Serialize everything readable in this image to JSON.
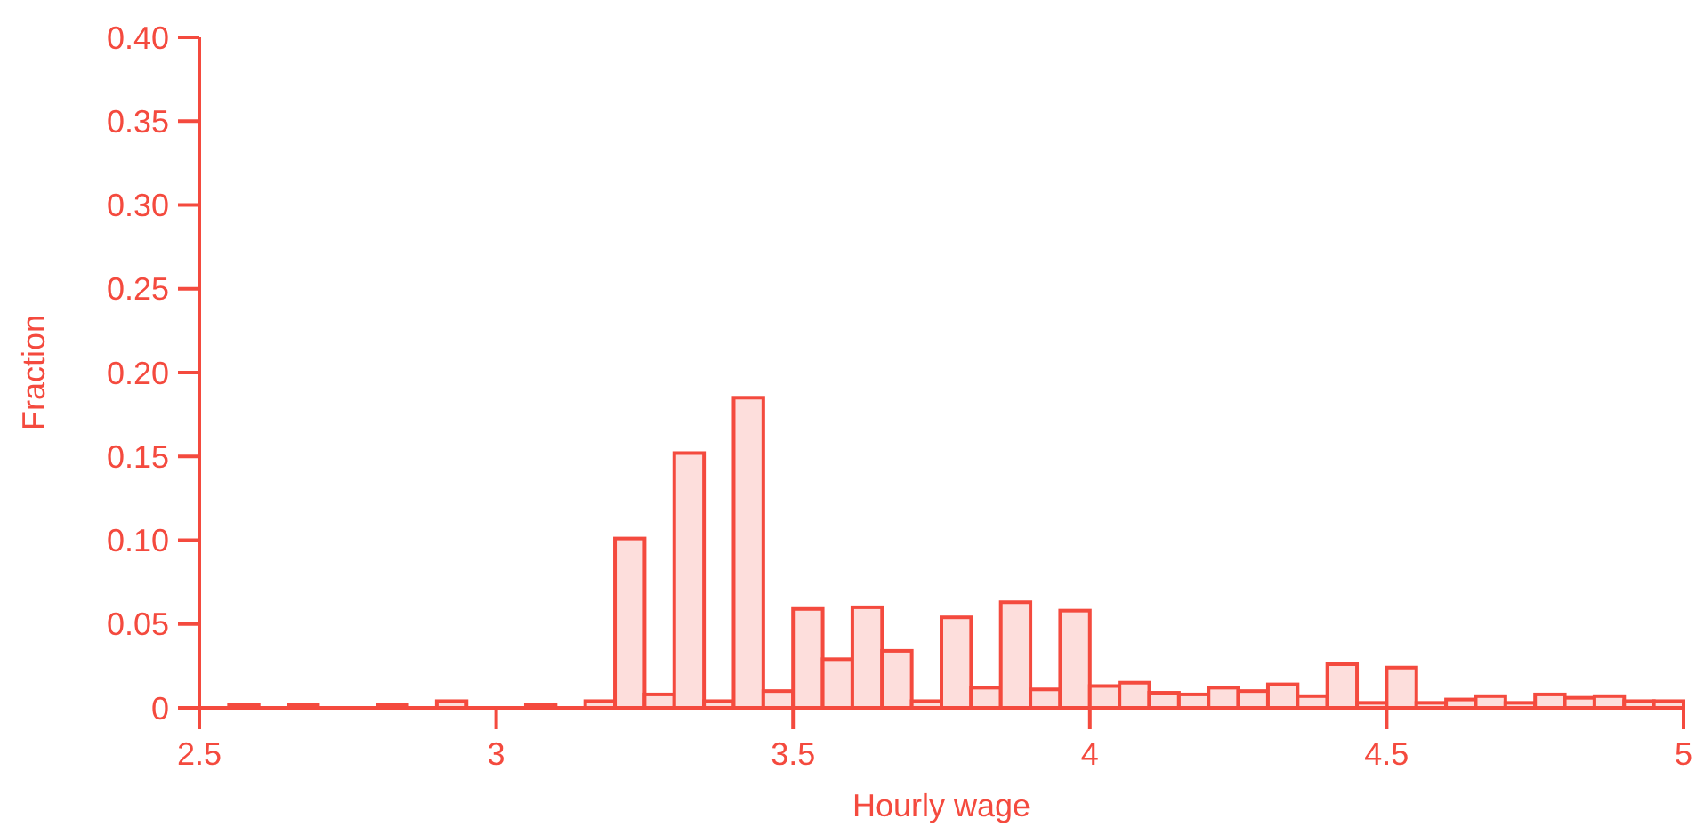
{
  "chart_data": {
    "type": "histogram",
    "xlabel": "Hourly wage",
    "ylabel": "Fraction",
    "bins": [
      2.5,
      2.55,
      2.6,
      2.65,
      2.7,
      2.75,
      2.8,
      2.85,
      2.9,
      2.95,
      3,
      3.05,
      3.1,
      3.15,
      3.2,
      3.25,
      3.3,
      3.35,
      3.4,
      3.45,
      3.5,
      3.55,
      3.6,
      3.65,
      3.7,
      3.75,
      3.8,
      3.85,
      3.9,
      3.95,
      4,
      4.05,
      4.1,
      4.15,
      4.2,
      4.25,
      4.3,
      4.35,
      4.4,
      4.45,
      4.5,
      4.55,
      4.6,
      4.65,
      4.7,
      4.75,
      4.8,
      4.85,
      4.9,
      4.95,
      5
    ],
    "values": [
      0,
      0.002,
      0,
      0.002,
      0,
      0,
      0.002,
      0,
      0.004,
      0,
      0,
      0.002,
      0,
      0.004,
      0.101,
      0.008,
      0.152,
      0.004,
      0.185,
      0.01,
      0.059,
      0.029,
      0.06,
      0.034,
      0.004,
      0.054,
      0.012,
      0.063,
      0.011,
      0.058,
      0.013,
      0.015,
      0.009,
      0.008,
      0.012,
      0.01,
      0.014,
      0.007,
      0.026,
      0.003,
      0.024,
      0.003,
      0.005,
      0.007,
      0.003,
      0.008,
      0.006,
      0.007,
      0.004,
      0.004
    ],
    "color": "#f44a3e",
    "xlim": [
      2.5,
      5
    ],
    "xticks": [
      2.5,
      3,
      3.5,
      4,
      4.5,
      5
    ],
    "ylim": [
      0,
      0.4
    ],
    "yticks": [
      {
        "value": 0,
        "label": "0"
      },
      {
        "value": 0.05,
        "label": "0.05"
      },
      {
        "value": 0.1,
        "label": "0.10"
      },
      {
        "value": 0.15,
        "label": "0.15"
      },
      {
        "value": 0.2,
        "label": "0.20"
      },
      {
        "value": 0.25,
        "label": "0.25"
      },
      {
        "value": 0.3,
        "label": "0.30"
      },
      {
        "value": 0.35,
        "label": "0.35"
      },
      {
        "value": 0.4,
        "label": "0.40"
      }
    ],
    "grid": false
  }
}
